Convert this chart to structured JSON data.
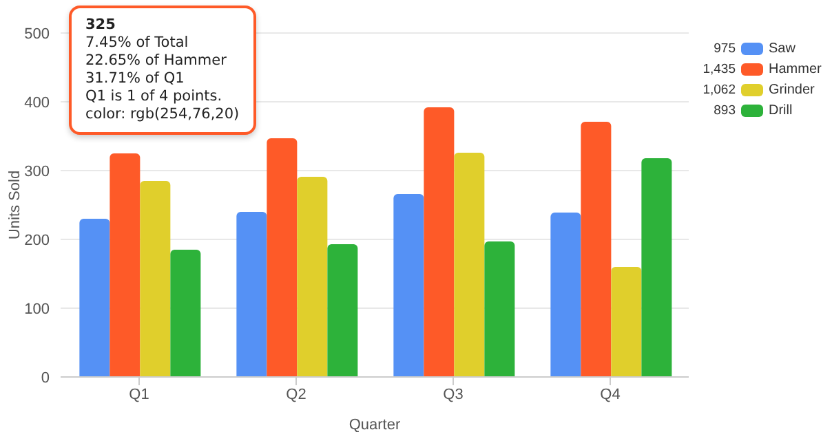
{
  "chart_data": {
    "type": "bar",
    "xlabel": "Quarter",
    "ylabel": "Units Sold",
    "categories": [
      "Q1",
      "Q2",
      "Q3",
      "Q4"
    ],
    "series": [
      {
        "name": "Saw",
        "color": "#5591f5",
        "values": [
          230,
          240,
          266,
          239
        ]
      },
      {
        "name": "Hammer",
        "color": "#fe5a28",
        "values": [
          325,
          347,
          392,
          371
        ]
      },
      {
        "name": "Grinder",
        "color": "#e0cf2c",
        "values": [
          285,
          291,
          326,
          160
        ]
      },
      {
        "name": "Drill",
        "color": "#2db23a",
        "values": [
          185,
          193,
          197,
          318
        ]
      }
    ],
    "ylim": [
      0,
      500
    ],
    "yticks": [
      0,
      100,
      200,
      300,
      400,
      500
    ],
    "grid": "y",
    "legend": "top right",
    "annotations": [
      {
        "text": "325\n7.45% of Total\n22.65% of Hammer\n31.71% of Q1\nQ1 is 1 of 4 points.\ncolor: rgb(254,76,20)",
        "x": "Q1",
        "y": 325
      },
      "975",
      "1,435",
      "1,062",
      "893"
    ]
  }
}
